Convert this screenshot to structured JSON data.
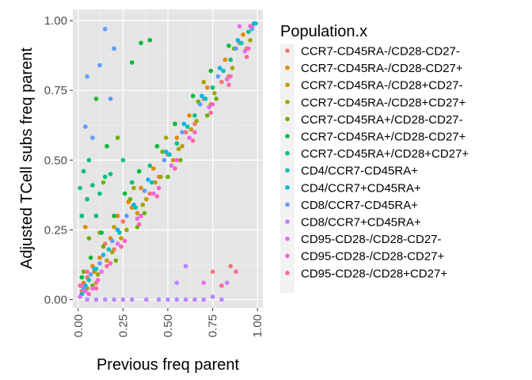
{
  "chart_data": {
    "type": "scatter",
    "title": "",
    "xlabel": "Previous freq parent",
    "ylabel": "Adjusted TCell subs freq parent",
    "xlim": [
      -0.03,
      1.03
    ],
    "ylim": [
      -0.03,
      1.04
    ],
    "x_ticks": [
      "0.00",
      "0.25",
      "0.50",
      "0.75",
      "1.00"
    ],
    "y_ticks": [
      "0.00",
      "0.25",
      "0.50",
      "0.75",
      "1.00"
    ],
    "x_tick_values": [
      0,
      0.25,
      0.5,
      0.75,
      1
    ],
    "y_tick_values": [
      0,
      0.25,
      0.5,
      0.75,
      1
    ],
    "x_tick_rotation": "vertical",
    "background": "#e5e5e5",
    "grid": true,
    "legend": {
      "title": "Population.x",
      "placement": "right"
    },
    "series": [
      {
        "name": "CCR7-CD45RA-/CD28-CD27-",
        "color": "#F8766D",
        "points": [
          [
            0.02,
            0.03
          ],
          [
            0.05,
            0.08
          ],
          [
            0.1,
            0.06
          ],
          [
            0.15,
            0.2
          ],
          [
            0.2,
            0.18
          ],
          [
            0.3,
            0.33
          ],
          [
            0.4,
            0.38
          ],
          [
            0.5,
            0.52
          ],
          [
            0.6,
            0.6
          ],
          [
            0.7,
            0.72
          ],
          [
            0.8,
            0.78
          ],
          [
            0.9,
            0.92
          ],
          [
            0.97,
            0.98
          ],
          [
            0.85,
            0.12
          ],
          [
            0.75,
            0.1
          ],
          [
            0.25,
            0.28
          ],
          [
            0.45,
            0.44
          ],
          [
            0.65,
            0.63
          ]
        ]
      },
      {
        "name": "CCR7-CD45RA-/CD28-CD27+",
        "color": "#E58700",
        "points": [
          [
            0.03,
            0.06
          ],
          [
            0.08,
            0.12
          ],
          [
            0.12,
            0.15
          ],
          [
            0.18,
            0.22
          ],
          [
            0.22,
            0.3
          ],
          [
            0.28,
            0.35
          ],
          [
            0.35,
            0.4
          ],
          [
            0.42,
            0.47
          ],
          [
            0.55,
            0.58
          ],
          [
            0.62,
            0.66
          ],
          [
            0.72,
            0.76
          ],
          [
            0.82,
            0.86
          ],
          [
            0.92,
            0.95
          ],
          [
            0.02,
            0.3
          ],
          [
            0.04,
            0.26
          ],
          [
            0.3,
            0.33
          ]
        ]
      },
      {
        "name": "CCR7-CD45RA-/CD28+CD27-",
        "color": "#C99800",
        "points": [
          [
            0.04,
            0.03
          ],
          [
            0.09,
            0.1
          ],
          [
            0.16,
            0.14
          ],
          [
            0.24,
            0.22
          ],
          [
            0.33,
            0.31
          ],
          [
            0.43,
            0.42
          ],
          [
            0.53,
            0.5
          ],
          [
            0.63,
            0.61
          ],
          [
            0.74,
            0.7
          ],
          [
            0.84,
            0.8
          ],
          [
            0.94,
            0.9
          ],
          [
            0.2,
            0.26
          ],
          [
            0.38,
            0.36
          ],
          [
            0.58,
            0.55
          ]
        ]
      },
      {
        "name": "CCR7-CD45RA-/CD28+CD27+",
        "color": "#A3A500",
        "points": [
          [
            0.05,
            0.04
          ],
          [
            0.11,
            0.09
          ],
          [
            0.19,
            0.17
          ],
          [
            0.27,
            0.25
          ],
          [
            0.36,
            0.34
          ],
          [
            0.46,
            0.44
          ],
          [
            0.56,
            0.54
          ],
          [
            0.66,
            0.64
          ],
          [
            0.76,
            0.74
          ],
          [
            0.86,
            0.83
          ],
          [
            0.96,
            0.93
          ],
          [
            0.12,
            0.24
          ],
          [
            0.31,
            0.4
          ],
          [
            0.49,
            0.58
          ],
          [
            0.7,
            0.78
          ]
        ]
      },
      {
        "name": "CCR7-CD45RA+/CD28-CD27-",
        "color": "#6BB100",
        "points": [
          [
            0.03,
            0.1
          ],
          [
            0.08,
            0.05
          ],
          [
            0.14,
            0.19
          ],
          [
            0.21,
            0.14
          ],
          [
            0.29,
            0.36
          ],
          [
            0.37,
            0.31
          ],
          [
            0.47,
            0.53
          ],
          [
            0.57,
            0.5
          ],
          [
            0.67,
            0.71
          ],
          [
            0.77,
            0.72
          ],
          [
            0.87,
            0.9
          ],
          [
            0.22,
            0.58
          ],
          [
            0.14,
            0.42
          ],
          [
            0.06,
            0.22
          ],
          [
            0.5,
            0.44
          ],
          [
            0.33,
            0.26
          ],
          [
            0.72,
            0.66
          ]
        ]
      },
      {
        "name": "CCR7-CD45RA+/CD28-CD27+",
        "color": "#00BA38",
        "points": [
          [
            0.02,
            0.08
          ],
          [
            0.07,
            0.15
          ],
          [
            0.13,
            0.24
          ],
          [
            0.2,
            0.3
          ],
          [
            0.26,
            0.38
          ],
          [
            0.34,
            0.46
          ],
          [
            0.44,
            0.55
          ],
          [
            0.54,
            0.63
          ],
          [
            0.64,
            0.73
          ],
          [
            0.74,
            0.82
          ],
          [
            0.84,
            0.91
          ],
          [
            0.2,
            0.9
          ],
          [
            0.3,
            0.85
          ],
          [
            0.35,
            0.92
          ],
          [
            0.1,
            0.72
          ],
          [
            0.16,
            0.55
          ],
          [
            0.4,
            0.93
          ]
        ]
      },
      {
        "name": "CCR7-CD45RA+/CD28+CD27+",
        "color": "#00BF7D",
        "points": [
          [
            0.01,
            0.4
          ],
          [
            0.03,
            0.46
          ],
          [
            0.05,
            0.36
          ],
          [
            0.08,
            0.41
          ],
          [
            0.12,
            0.38
          ],
          [
            0.15,
            0.44
          ],
          [
            0.18,
            0.45
          ],
          [
            0.25,
            0.5
          ],
          [
            0.3,
            0.42
          ],
          [
            0.4,
            0.48
          ],
          [
            0.55,
            0.56
          ],
          [
            0.65,
            0.66
          ],
          [
            0.75,
            0.76
          ],
          [
            0.85,
            0.86
          ],
          [
            0.95,
            0.96
          ],
          [
            0.02,
            0.3
          ],
          [
            0.1,
            0.3
          ],
          [
            0.06,
            0.5
          ]
        ]
      },
      {
        "name": "CD4/CCR7-CD45RA+",
        "color": "#00C0B8",
        "points": [
          [
            0.02,
            0.02
          ],
          [
            0.06,
            0.07
          ],
          [
            0.1,
            0.11
          ],
          [
            0.17,
            0.18
          ],
          [
            0.23,
            0.24
          ],
          [
            0.32,
            0.33
          ],
          [
            0.41,
            0.42
          ],
          [
            0.51,
            0.52
          ],
          [
            0.61,
            0.62
          ],
          [
            0.71,
            0.72
          ],
          [
            0.81,
            0.82
          ],
          [
            0.91,
            0.92
          ],
          [
            0.99,
            0.99
          ]
        ]
      },
      {
        "name": "CD4/CCR7+CD45RA+",
        "color": "#00B4EF",
        "points": [
          [
            0.04,
            0.05
          ],
          [
            0.09,
            0.11
          ],
          [
            0.14,
            0.16
          ],
          [
            0.22,
            0.25
          ],
          [
            0.31,
            0.34
          ],
          [
            0.39,
            0.43
          ],
          [
            0.49,
            0.53
          ],
          [
            0.59,
            0.63
          ],
          [
            0.69,
            0.73
          ],
          [
            0.79,
            0.83
          ],
          [
            0.89,
            0.93
          ],
          [
            0.98,
            0.99
          ]
        ]
      },
      {
        "name": "CD8/CCR7-CD45RA+",
        "color": "#619CFF",
        "points": [
          [
            0.03,
            0.04
          ],
          [
            0.07,
            0.09
          ],
          [
            0.12,
            0.13
          ],
          [
            0.19,
            0.21
          ],
          [
            0.27,
            0.3
          ],
          [
            0.37,
            0.39
          ],
          [
            0.48,
            0.5
          ],
          [
            0.58,
            0.6
          ],
          [
            0.68,
            0.7
          ],
          [
            0.78,
            0.8
          ],
          [
            0.88,
            0.9
          ],
          [
            0.97,
            0.97
          ],
          [
            0.15,
            0.97
          ],
          [
            0.05,
            0.8
          ],
          [
            0.08,
            0.58
          ],
          [
            0.12,
            0.84
          ],
          [
            0.18,
            0.72
          ],
          [
            0.04,
            0.62
          ],
          [
            0.2,
            0.9
          ]
        ]
      },
      {
        "name": "CD8/CCR7+CD45RA+",
        "color": "#B983FF",
        "points": [
          [
            0.05,
            0.0
          ],
          [
            0.1,
            0.0
          ],
          [
            0.15,
            0.0
          ],
          [
            0.2,
            0.0
          ],
          [
            0.25,
            0.0
          ],
          [
            0.3,
            0.0
          ],
          [
            0.38,
            0.0
          ],
          [
            0.45,
            0.0
          ],
          [
            0.5,
            0.0
          ],
          [
            0.55,
            0.0
          ],
          [
            0.6,
            0.0
          ],
          [
            0.65,
            0.0
          ],
          [
            0.7,
            0.0
          ],
          [
            0.75,
            0.01
          ],
          [
            0.8,
            0.0
          ],
          [
            0.83,
            0.06
          ],
          [
            0.55,
            0.06
          ],
          [
            0.6,
            0.12
          ]
        ]
      },
      {
        "name": "CD95-CD28-/CD28-CD27-",
        "color": "#E76BF3",
        "points": [
          [
            0.01,
            0.01
          ],
          [
            0.04,
            0.03
          ],
          [
            0.08,
            0.04
          ],
          [
            0.13,
            0.1
          ],
          [
            0.22,
            0.2
          ],
          [
            0.33,
            0.29
          ],
          [
            0.42,
            0.38
          ],
          [
            0.52,
            0.48
          ],
          [
            0.62,
            0.58
          ],
          [
            0.73,
            0.69
          ],
          [
            0.83,
            0.79
          ],
          [
            0.93,
            0.89
          ],
          [
            0.9,
            0.98
          ],
          [
            0.7,
            0.06
          ]
        ]
      },
      {
        "name": "CD95-CD28-/CD28-CD27+",
        "color": "#FD61D1",
        "points": [
          [
            0.02,
            0.05
          ],
          [
            0.06,
            0.02
          ],
          [
            0.11,
            0.07
          ],
          [
            0.18,
            0.13
          ],
          [
            0.26,
            0.21
          ],
          [
            0.35,
            0.3
          ],
          [
            0.45,
            0.4
          ],
          [
            0.55,
            0.5
          ],
          [
            0.65,
            0.6
          ],
          [
            0.75,
            0.7
          ],
          [
            0.85,
            0.8
          ],
          [
            0.95,
            0.9
          ],
          [
            0.96,
            0.98
          ]
        ]
      },
      {
        "name": "CD95-CD28-/CD28+CD27+",
        "color": "#FF67A4",
        "points": [
          [
            0.01,
            0.05
          ],
          [
            0.05,
            0.1
          ],
          [
            0.1,
            0.04
          ],
          [
            0.16,
            0.12
          ],
          [
            0.24,
            0.19
          ],
          [
            0.34,
            0.27
          ],
          [
            0.44,
            0.37
          ],
          [
            0.54,
            0.47
          ],
          [
            0.64,
            0.57
          ],
          [
            0.74,
            0.67
          ],
          [
            0.84,
            0.77
          ],
          [
            0.94,
            0.87
          ],
          [
            0.88,
            0.1
          ],
          [
            0.8,
            0.05
          ]
        ]
      }
    ]
  }
}
